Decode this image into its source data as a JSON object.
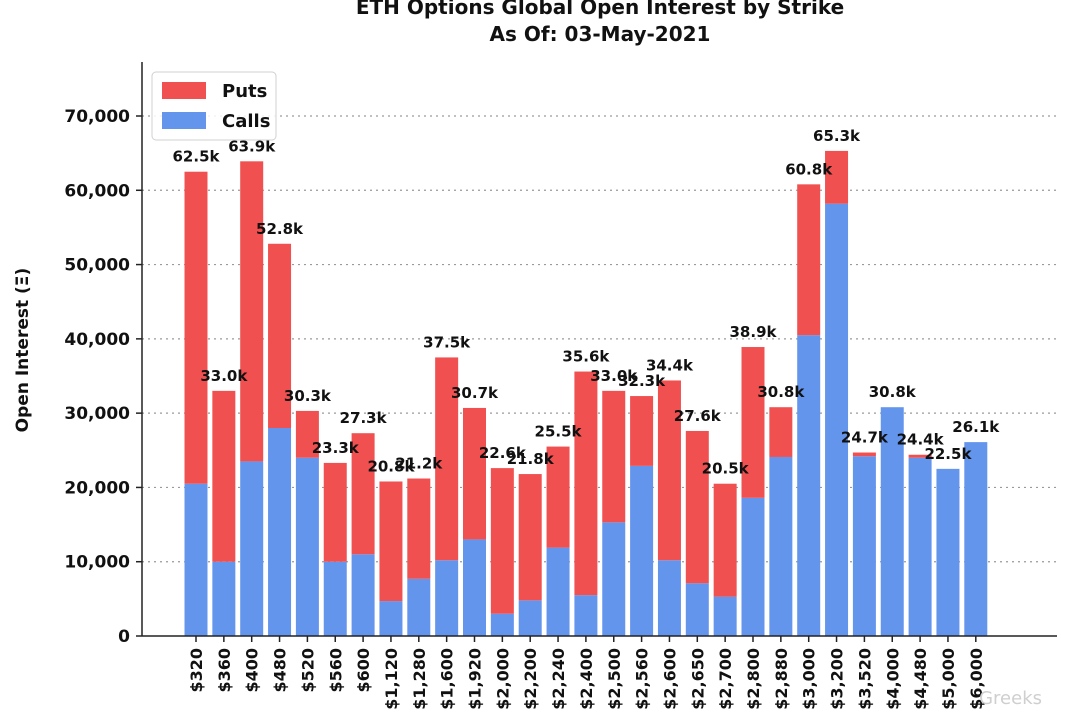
{
  "chart_data": {
    "type": "bar",
    "stacked": true,
    "title_lines": [
      "ETH Options Global Open Interest by Strike",
      "As Of: 03-May-2021"
    ],
    "ylabel": "Open Interest (Ξ)",
    "xlabel": "",
    "ylim": [
      0,
      80000
    ],
    "yticks": [
      0,
      10000,
      20000,
      30000,
      40000,
      50000,
      60000,
      70000
    ],
    "ytick_labels": [
      "0",
      "10,000",
      "20,000",
      "30,000",
      "40,000",
      "50,000",
      "60,000",
      "70,000"
    ],
    "grid": "horizontal dotted",
    "legend_position": "top-left",
    "categories": [
      "$320",
      "$360",
      "$400",
      "$480",
      "$520",
      "$560",
      "$600",
      "$1,120",
      "$1,280",
      "$1,600",
      "$1,920",
      "$2,000",
      "$2,200",
      "$2,240",
      "$2,400",
      "$2,500",
      "$2,560",
      "$2,600",
      "$2,650",
      "$2,700",
      "$2,800",
      "$2,880",
      "$3,000",
      "$3,200",
      "$3,520",
      "$4,000",
      "$4,480",
      "$5,000",
      "$6,000"
    ],
    "series": [
      {
        "name": "Calls",
        "color": "#6495ed",
        "values": [
          20500,
          10000,
          23500,
          28000,
          24000,
          10000,
          11000,
          4700,
          7700,
          10200,
          13000,
          3000,
          4800,
          11900,
          5500,
          15300,
          22900,
          10200,
          7100,
          5300,
          18600,
          24100,
          40500,
          58200,
          24200,
          30800,
          24000,
          22500,
          26100
        ]
      },
      {
        "name": "Puts",
        "color": "#f05050",
        "values": [
          42000,
          23000,
          40400,
          24800,
          6300,
          13300,
          16300,
          16100,
          13500,
          27300,
          17700,
          19600,
          17000,
          13600,
          30100,
          17700,
          9400,
          24200,
          20500,
          15200,
          20300,
          6700,
          20300,
          7100,
          500,
          0,
          400,
          0,
          0
        ]
      }
    ],
    "totals_labels": [
      "62.5k",
      "33.0k",
      "63.9k",
      "52.8k",
      "30.3k",
      "23.3k",
      "27.3k",
      "20.8k",
      "21.2k",
      "37.5k",
      "30.7k",
      "22.6k",
      "21.8k",
      "25.5k",
      "35.6k",
      "33.0k",
      "32.3k",
      "34.4k",
      "27.6k",
      "20.5k",
      "38.9k",
      "30.8k",
      "60.8k",
      "65.3k",
      "24.7k",
      "30.8k",
      "24.4k",
      "22.5k",
      "26.1k"
    ],
    "legend": [
      {
        "label": "Puts",
        "color": "#f05050"
      },
      {
        "label": "Calls",
        "color": "#6495ed"
      }
    ]
  },
  "watermark": "Greeks"
}
